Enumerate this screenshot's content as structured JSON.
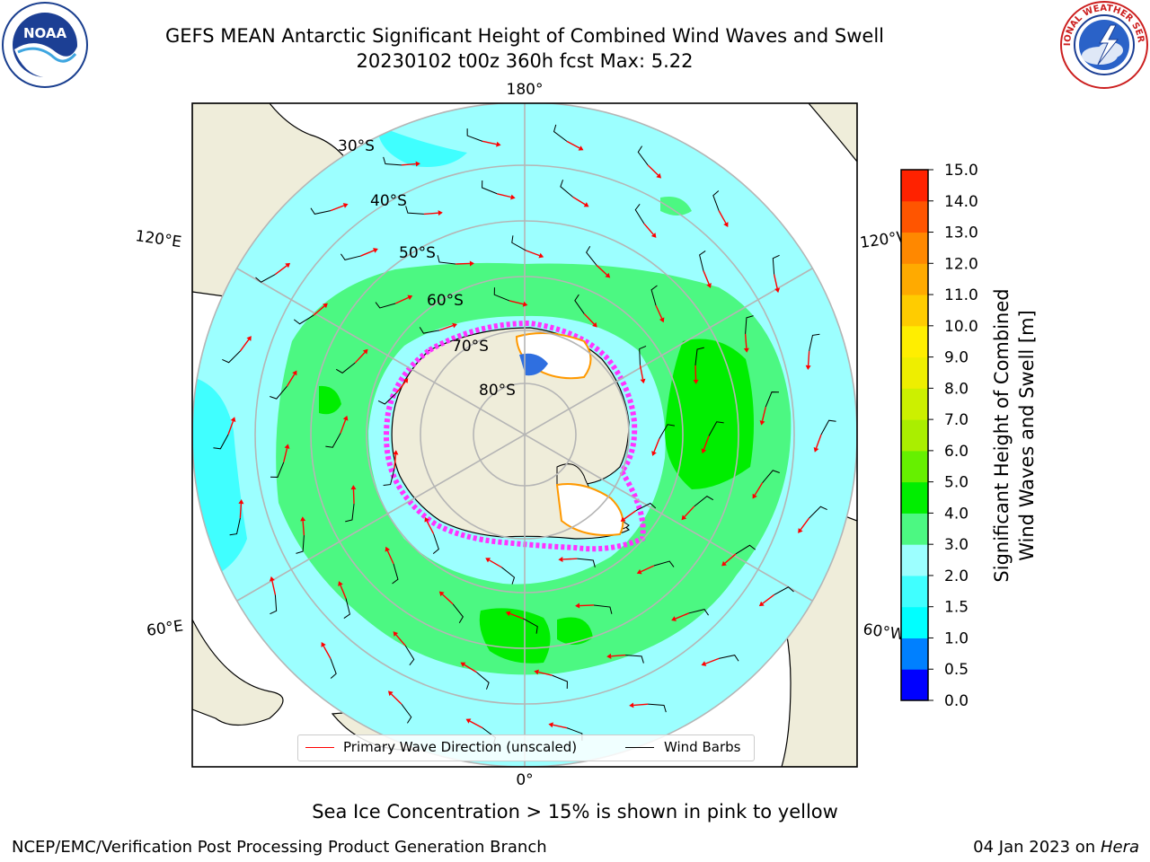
{
  "header": {
    "title_line1": "GEFS MEAN Antarctic Significant Height of Combined Wind Waves and Swell",
    "title_line2": "20230102 t00z 360h fcst   Max: 5.22"
  },
  "logos": {
    "left": {
      "name": "noaa-logo",
      "text": "NOAA",
      "ring_text": "NATIONAL OCEANIC AND ATMOSPHERIC ADMINISTRATION · U.S. DEPARTMENT OF COMMERCE"
    },
    "right": {
      "name": "nws-logo",
      "ring_text": "NATIONAL WEATHER SERVICE"
    }
  },
  "map": {
    "longitude_labels": {
      "top": "180°",
      "bottom": "0°",
      "upper_left": "120°E",
      "lower_left": "60°E",
      "upper_right": "120°W",
      "lower_right": "60°W"
    },
    "latitude_labels": [
      "30°S",
      "40°S",
      "50°S",
      "60°S",
      "70°S",
      "80°S"
    ],
    "legend": {
      "wave_direction": "Primary Wave Direction (unscaled)",
      "wind_barbs": "Wind Barbs",
      "wave_direction_color": "#ff0000",
      "wind_barbs_color": "#000000"
    }
  },
  "colorbar": {
    "label_line1": "Significant Height of Combined",
    "label_line2": "Wind Waves and Swell [m]",
    "ticks": [
      "0.0",
      "0.5",
      "1.0",
      "1.5",
      "2.0",
      "3.0",
      "4.0",
      "5.0",
      "6.0",
      "7.0",
      "8.0",
      "9.0",
      "10.0",
      "11.0",
      "12.0",
      "13.0",
      "14.0",
      "15.0"
    ],
    "colors": [
      "#0000ff",
      "#0080ff",
      "#00ffff",
      "#40ffff",
      "#9cffff",
      "#4cf882",
      "#00ee00",
      "#66f000",
      "#aaee00",
      "#ccf000",
      "#eeee00",
      "#ffee00",
      "#ffcc00",
      "#ffaa00",
      "#ff8800",
      "#ff5500",
      "#ff2200"
    ]
  },
  "footer": {
    "note": "Sea Ice Concentration > 15% is shown in pink to yellow",
    "credit": "NCEP/EMC/Verification Post Processing Product Generation Branch",
    "date": "04 Jan 2023 on",
    "machine": "Hera"
  }
}
